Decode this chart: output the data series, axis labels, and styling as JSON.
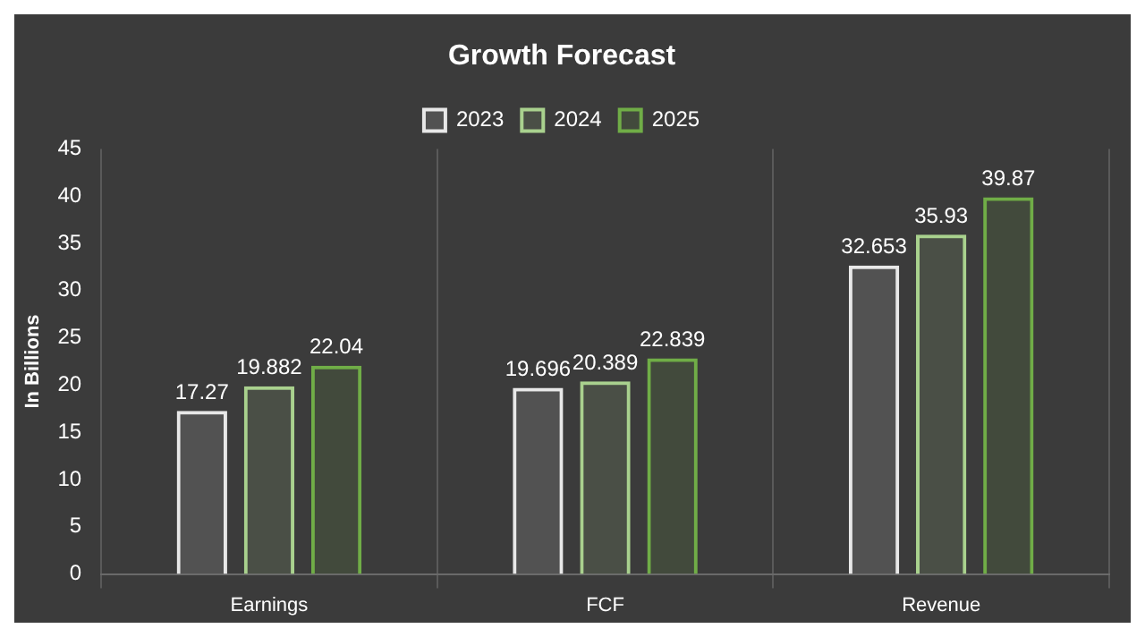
{
  "chart_data": {
    "type": "bar",
    "title": "Growth Forecast",
    "ylabel": "In Billions",
    "categories": [
      "Earnings",
      "FCF",
      "Revenue"
    ],
    "series": [
      {
        "name": "2023",
        "color": "#e8e8e8",
        "values": [
          17.27,
          19.696,
          32.653
        ]
      },
      {
        "name": "2024",
        "color": "#a9d18e",
        "values": [
          19.882,
          20.389,
          35.93
        ]
      },
      {
        "name": "2025",
        "color": "#70ad47",
        "values": [
          22.04,
          22.839,
          39.87
        ]
      }
    ],
    "ylim": [
      0,
      45
    ],
    "yticks": [
      0,
      5,
      10,
      15,
      20,
      25,
      30,
      35,
      40,
      45
    ],
    "grid": "x",
    "legend": "top",
    "data_labels": true
  }
}
